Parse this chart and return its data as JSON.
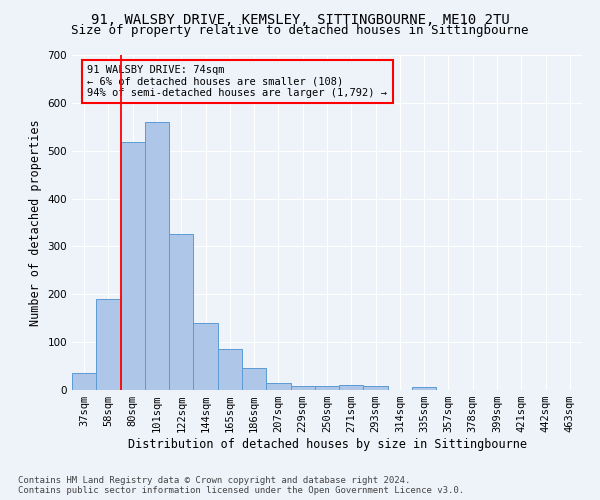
{
  "title": "91, WALSBY DRIVE, KEMSLEY, SITTINGBOURNE, ME10 2TU",
  "subtitle": "Size of property relative to detached houses in Sittingbourne",
  "xlabel": "Distribution of detached houses by size in Sittingbourne",
  "ylabel": "Number of detached properties",
  "footer_line1": "Contains HM Land Registry data © Crown copyright and database right 2024.",
  "footer_line2": "Contains public sector information licensed under the Open Government Licence v3.0.",
  "categories": [
    "37sqm",
    "58sqm",
    "80sqm",
    "101sqm",
    "122sqm",
    "144sqm",
    "165sqm",
    "186sqm",
    "207sqm",
    "229sqm",
    "250sqm",
    "271sqm",
    "293sqm",
    "314sqm",
    "335sqm",
    "357sqm",
    "378sqm",
    "399sqm",
    "421sqm",
    "442sqm",
    "463sqm"
  ],
  "values": [
    35,
    190,
    518,
    560,
    325,
    140,
    85,
    47,
    14,
    9,
    9,
    10,
    9,
    0,
    7,
    0,
    0,
    0,
    0,
    0,
    0
  ],
  "bar_color": "#aec6e8",
  "bar_edge_color": "#5b9bd5",
  "ylim": [
    0,
    700
  ],
  "yticks": [
    0,
    100,
    200,
    300,
    400,
    500,
    600,
    700
  ],
  "property_line_x": 1.5,
  "annotation_text_line1": "91 WALSBY DRIVE: 74sqm",
  "annotation_text_line2": "← 6% of detached houses are smaller (108)",
  "annotation_text_line3": "94% of semi-detached houses are larger (1,792) →",
  "background_color": "#eef2f9",
  "grid_color": "#ffffff",
  "title_fontsize": 10,
  "subtitle_fontsize": 9,
  "tick_fontsize": 7.5,
  "ylabel_fontsize": 8.5,
  "xlabel_fontsize": 8.5,
  "footer_fontsize": 6.5,
  "ann_fontsize": 7.5
}
